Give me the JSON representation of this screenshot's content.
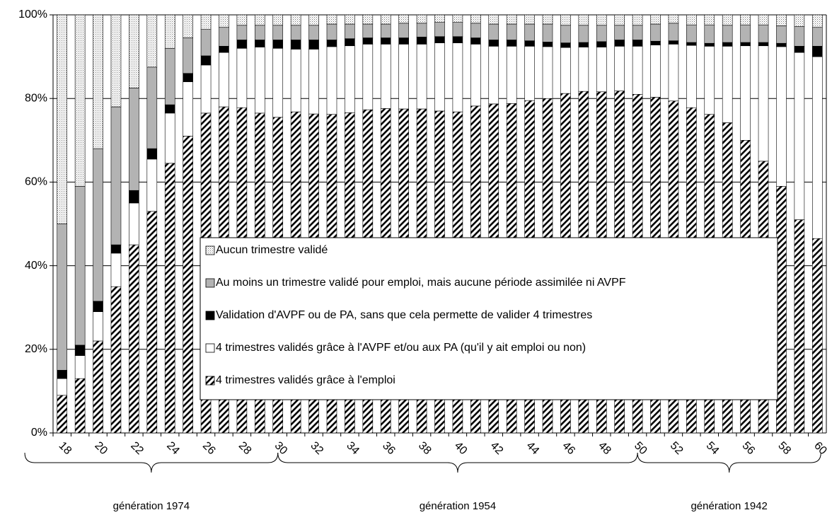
{
  "chart_data": {
    "type": "stacked-bar",
    "categories": [
      "18",
      null,
      "20",
      null,
      "22",
      null,
      "24",
      null,
      "26",
      null,
      "28",
      null,
      "30",
      null,
      "32",
      null,
      "34",
      null,
      "36",
      null,
      "38",
      null,
      "40",
      null,
      "42",
      null,
      "44",
      null,
      "46",
      null,
      "48",
      null,
      "50",
      null,
      "52",
      null,
      "54",
      null,
      "56",
      null,
      "58",
      null,
      "60"
    ],
    "groups": [
      {
        "label": "génération 1974",
        "start": 0,
        "end": 12
      },
      {
        "label": "génération 1954",
        "start": 13,
        "end": 32
      },
      {
        "label": "génération 1942",
        "start": 33,
        "end": 42
      }
    ],
    "ylim": [
      0,
      100
    ],
    "yticks": [
      {
        "value": 0,
        "label": "0%"
      },
      {
        "value": 20,
        "label": "20%"
      },
      {
        "value": 40,
        "label": "40%"
      },
      {
        "value": 60,
        "label": "60%"
      },
      {
        "value": 80,
        "label": "80%"
      },
      {
        "value": 100,
        "label": "100%"
      }
    ],
    "grid": true,
    "legend": "center",
    "series": [
      {
        "name": "4 trimestres validés grâce à l'emploi",
        "color": "#000000",
        "pattern": "diagonal",
        "values": [
          9,
          13,
          22,
          35,
          45,
          53,
          64.5,
          71,
          76.5,
          78,
          77.8,
          76.5,
          75.5,
          76.8,
          76.3,
          76.2,
          76.6,
          77.3,
          77.6,
          77.5,
          77.5,
          77,
          76.8,
          78.2,
          78.7,
          78.8,
          79.5,
          80,
          81.2,
          81.7,
          81.6,
          81.8,
          81,
          80.3,
          79.4,
          77.8,
          76.2,
          74.2,
          70,
          65,
          59,
          51,
          46.5
        ]
      },
      {
        "name": "4 trimestres validés grâce à l'AVPF et/ou aux PA (qu'il y ait emploi ou non)",
        "color": "#ffffff",
        "pattern": "solid",
        "values": [
          4,
          5.5,
          7,
          8,
          10,
          12.5,
          12,
          13,
          11.5,
          13,
          14.2,
          15.8,
          16.5,
          15,
          15.5,
          16.2,
          16,
          15.7,
          15.4,
          15.5,
          15.5,
          16.3,
          16.5,
          14.8,
          13.8,
          13.7,
          13,
          12.4,
          11,
          10.6,
          10.7,
          10.7,
          11.5,
          12.5,
          13.6,
          14.9,
          16.3,
          18.3,
          22.6,
          27.6,
          33.4,
          40,
          43.5
        ]
      },
      {
        "name": "Validation d'AVPF ou de PA, sans que cela permette de valider 4 trimestres",
        "color": "#000000",
        "pattern": "solid",
        "values": [
          2,
          2.5,
          2.5,
          2,
          3,
          2.5,
          2,
          2,
          2.2,
          1.5,
          2,
          1.7,
          2,
          2.2,
          2.2,
          1.6,
          1.7,
          1.5,
          1.5,
          1.5,
          1.7,
          1.5,
          1.5,
          1.5,
          1.5,
          1.5,
          1.3,
          1.1,
          1.1,
          1.1,
          1.3,
          1.5,
          1.5,
          0.9,
          0.8,
          0.7,
          0.7,
          0.9,
          0.8,
          0.8,
          0.8,
          1.5,
          2.5
        ]
      },
      {
        "name": "Au moins un trimestre validé pour emploi, mais aucune période assimilée ni AVPF",
        "color": "#b3b3b3",
        "pattern": "solid",
        "values": [
          35,
          38,
          36.5,
          33,
          24.5,
          19.5,
          13.5,
          8.5,
          6.3,
          4.5,
          3.5,
          3.5,
          3.5,
          3.5,
          3.5,
          3.8,
          3.5,
          3.3,
          3.3,
          3.5,
          3.3,
          3.4,
          3.4,
          3.5,
          3.8,
          3.8,
          4,
          4.3,
          4.2,
          4.1,
          3.9,
          3.5,
          3.5,
          4.1,
          4.2,
          4.2,
          4.4,
          4.1,
          4.2,
          4.2,
          4.2,
          4.7,
          4.5
        ]
      },
      {
        "name": "Aucun trimestre validé",
        "color": "#e6e6e6",
        "pattern": "dots",
        "values": [
          50,
          41,
          32,
          22,
          17.5,
          12.5,
          8,
          5.5,
          3.5,
          3,
          2.5,
          2.5,
          2.5,
          2.5,
          2.5,
          2.2,
          2.2,
          2.2,
          2.2,
          2,
          2,
          1.8,
          1.8,
          2,
          2.2,
          2.2,
          2.2,
          2.2,
          2.5,
          2.5,
          2.5,
          2.5,
          2.5,
          2.2,
          2,
          2.4,
          2.4,
          2.5,
          2.4,
          2.4,
          2.6,
          2.8,
          3
        ]
      }
    ]
  }
}
